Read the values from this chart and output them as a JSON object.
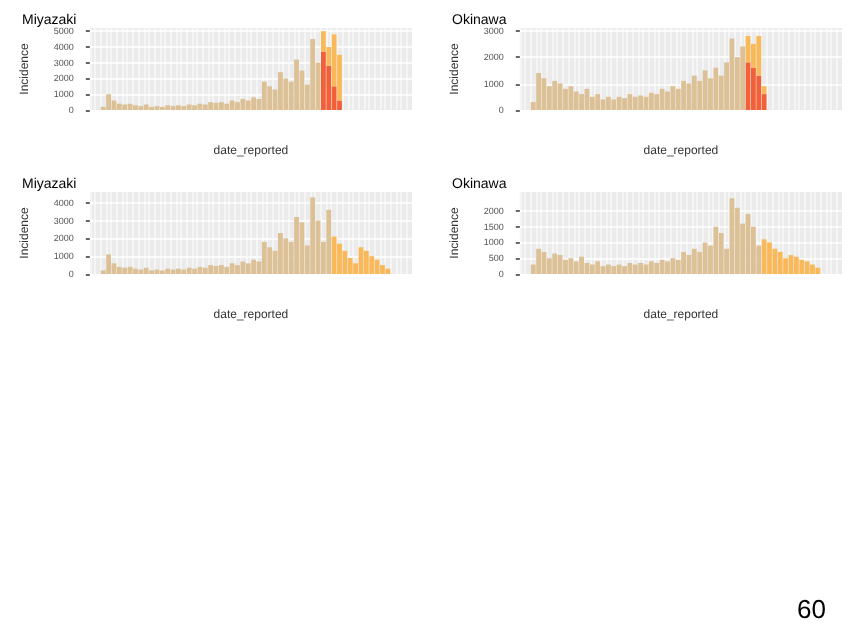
{
  "chart_data": [
    {
      "type": "bar",
      "title": "Miyazaki",
      "xlabel": "date_reported",
      "ylabel": "Incidence",
      "stacked": true,
      "grid": true,
      "ylim": [
        0,
        5200
      ],
      "yticks": [
        0,
        1000,
        2000,
        3000,
        4000,
        5000
      ],
      "categories": [
        null,
        null,
        null,
        null,
        null,
        null,
        null,
        null,
        null,
        null,
        null,
        null,
        null,
        null,
        null,
        null,
        null,
        null,
        null,
        null,
        null,
        null,
        null,
        null,
        null,
        null,
        null,
        null,
        null,
        null,
        null,
        null,
        null,
        null,
        null,
        null,
        null,
        null,
        null,
        null,
        null,
        null,
        null,
        null,
        null,
        null,
        null,
        null,
        null,
        null,
        null,
        null,
        null,
        null,
        null,
        null,
        null,
        null,
        null,
        null
      ],
      "series": [
        {
          "color": "#dcc197",
          "values": [
            null,
            null,
            200,
            1000,
            600,
            400,
            350,
            400,
            300,
            250,
            350,
            200,
            250,
            200,
            300,
            250,
            300,
            250,
            350,
            300,
            400,
            350,
            500,
            450,
            500,
            400,
            600,
            500,
            700,
            600,
            800,
            700,
            1800,
            1500,
            1300,
            2400,
            2000,
            1800,
            3200,
            2500,
            1600,
            4500,
            3000,
            null,
            null,
            null,
            null,
            null,
            null,
            null,
            null,
            null,
            null,
            null,
            null,
            null,
            null,
            null,
            null,
            null
          ]
        },
        {
          "color": "#f2603a",
          "values": [
            null,
            null,
            null,
            null,
            null,
            null,
            null,
            null,
            null,
            null,
            null,
            null,
            null,
            null,
            null,
            null,
            null,
            null,
            null,
            null,
            null,
            null,
            null,
            null,
            null,
            null,
            null,
            null,
            null,
            null,
            null,
            null,
            null,
            null,
            null,
            null,
            null,
            null,
            null,
            null,
            null,
            null,
            null,
            3700,
            2800,
            1500,
            600,
            null,
            null,
            null,
            null,
            null,
            null,
            null,
            null,
            null,
            null,
            null,
            null,
            null
          ]
        },
        {
          "color": "#f9b95a",
          "values": [
            null,
            null,
            null,
            null,
            null,
            null,
            null,
            null,
            null,
            null,
            null,
            null,
            null,
            null,
            null,
            null,
            null,
            null,
            null,
            null,
            null,
            null,
            null,
            null,
            null,
            null,
            null,
            null,
            null,
            null,
            null,
            null,
            null,
            null,
            null,
            null,
            null,
            null,
            null,
            null,
            null,
            null,
            null,
            1300,
            1200,
            3300,
            2900,
            null,
            null,
            null,
            null,
            null,
            null,
            null,
            null,
            null,
            null,
            null,
            null,
            null
          ]
        }
      ]
    },
    {
      "type": "bar",
      "title": "Okinawa",
      "xlabel": "date_reported",
      "ylabel": "Incidence",
      "stacked": true,
      "grid": true,
      "ylim": [
        0,
        3100
      ],
      "yticks": [
        0,
        1000,
        2000,
        3000
      ],
      "categories": [
        null,
        null,
        null,
        null,
        null,
        null,
        null,
        null,
        null,
        null,
        null,
        null,
        null,
        null,
        null,
        null,
        null,
        null,
        null,
        null,
        null,
        null,
        null,
        null,
        null,
        null,
        null,
        null,
        null,
        null,
        null,
        null,
        null,
        null,
        null,
        null,
        null,
        null,
        null,
        null,
        null,
        null,
        null,
        null,
        null,
        null,
        null,
        null,
        null,
        null,
        null,
        null,
        null,
        null,
        null,
        null,
        null,
        null,
        null,
        null
      ],
      "series": [
        {
          "color": "#dcc197",
          "values": [
            null,
            null,
            300,
            1400,
            1200,
            900,
            1100,
            1000,
            800,
            900,
            700,
            600,
            800,
            500,
            600,
            400,
            500,
            400,
            500,
            450,
            600,
            500,
            550,
            500,
            650,
            600,
            800,
            700,
            900,
            800,
            1100,
            1000,
            1300,
            1100,
            1500,
            1200,
            1600,
            1300,
            1800,
            2700,
            2000,
            2400,
            null,
            null,
            null,
            null,
            null,
            null,
            null,
            null,
            null,
            null,
            null,
            null,
            null,
            null,
            null,
            null,
            null,
            null
          ]
        },
        {
          "color": "#f2603a",
          "values": [
            null,
            null,
            null,
            null,
            null,
            null,
            null,
            null,
            null,
            null,
            null,
            null,
            null,
            null,
            null,
            null,
            null,
            null,
            null,
            null,
            null,
            null,
            null,
            null,
            null,
            null,
            null,
            null,
            null,
            null,
            null,
            null,
            null,
            null,
            null,
            null,
            null,
            null,
            null,
            null,
            null,
            null,
            1800,
            1600,
            1300,
            600,
            null,
            null,
            null,
            null,
            null,
            null,
            null,
            null,
            null,
            null,
            null,
            null,
            null,
            null
          ]
        },
        {
          "color": "#f9b95a",
          "values": [
            null,
            null,
            null,
            null,
            null,
            null,
            null,
            null,
            null,
            null,
            null,
            null,
            null,
            null,
            null,
            null,
            null,
            null,
            null,
            null,
            null,
            null,
            null,
            null,
            null,
            null,
            null,
            null,
            null,
            null,
            null,
            null,
            null,
            null,
            null,
            null,
            null,
            null,
            null,
            null,
            null,
            null,
            1000,
            900,
            1500,
            300,
            null,
            null,
            null,
            null,
            null,
            null,
            null,
            null,
            null,
            null,
            null,
            null,
            null,
            null
          ]
        }
      ]
    },
    {
      "type": "bar",
      "title": "Miyazaki",
      "xlabel": "date_reported",
      "ylabel": "Incidence",
      "stacked": true,
      "grid": true,
      "ylim": [
        0,
        4600
      ],
      "yticks": [
        0,
        1000,
        2000,
        3000,
        4000
      ],
      "categories": [
        null,
        null,
        null,
        null,
        null,
        null,
        null,
        null,
        null,
        null,
        null,
        null,
        null,
        null,
        null,
        null,
        null,
        null,
        null,
        null,
        null,
        null,
        null,
        null,
        null,
        null,
        null,
        null,
        null,
        null,
        null,
        null,
        null,
        null,
        null,
        null,
        null,
        null,
        null,
        null,
        null,
        null,
        null,
        null,
        null,
        null,
        null,
        null,
        null,
        null,
        null,
        null,
        null,
        null,
        null,
        null,
        null,
        null,
        null,
        null
      ],
      "series": [
        {
          "color": "#dcc197",
          "values": [
            null,
            null,
            200,
            1100,
            600,
            400,
            350,
            400,
            300,
            250,
            350,
            200,
            250,
            200,
            300,
            250,
            300,
            250,
            350,
            300,
            400,
            350,
            500,
            450,
            500,
            400,
            600,
            500,
            700,
            600,
            800,
            700,
            1800,
            1500,
            1300,
            2300,
            2000,
            1800,
            3200,
            2900,
            1600,
            4300,
            3000,
            1800,
            3600,
            null,
            null,
            null,
            null,
            null,
            null,
            null,
            null,
            null,
            null,
            null,
            null,
            null,
            null,
            null
          ]
        },
        {
          "color": "#f9b95a",
          "values": [
            null,
            null,
            null,
            null,
            null,
            null,
            null,
            null,
            null,
            null,
            null,
            null,
            null,
            null,
            null,
            null,
            null,
            null,
            null,
            null,
            null,
            null,
            null,
            null,
            null,
            null,
            null,
            null,
            null,
            null,
            null,
            null,
            null,
            null,
            null,
            null,
            null,
            null,
            null,
            null,
            null,
            null,
            null,
            null,
            null,
            2100,
            1700,
            1300,
            900,
            600,
            1500,
            1300,
            1000,
            800,
            500,
            300,
            null,
            null,
            null,
            null
          ]
        }
      ]
    },
    {
      "type": "bar",
      "title": "Okinawa",
      "xlabel": "date_reported",
      "ylabel": "Incidence",
      "stacked": true,
      "grid": true,
      "ylim": [
        0,
        2600
      ],
      "yticks": [
        0,
        500,
        1000,
        1500,
        2000
      ],
      "annotations": [
        "60"
      ],
      "categories": [
        null,
        null,
        null,
        null,
        null,
        null,
        null,
        null,
        null,
        null,
        null,
        null,
        null,
        null,
        null,
        null,
        null,
        null,
        null,
        null,
        null,
        null,
        null,
        null,
        null,
        null,
        null,
        null,
        null,
        null,
        null,
        null,
        null,
        null,
        null,
        null,
        null,
        null,
        null,
        null,
        null,
        null,
        null,
        null,
        null,
        null,
        null,
        null,
        null,
        null,
        null,
        null,
        null,
        null,
        null,
        null,
        null,
        null,
        null,
        null
      ],
      "series": [
        {
          "color": "#dcc197",
          "values": [
            null,
            null,
            300,
            800,
            700,
            500,
            650,
            600,
            450,
            500,
            400,
            550,
            350,
            300,
            400,
            250,
            300,
            250,
            300,
            250,
            350,
            300,
            350,
            300,
            400,
            350,
            450,
            400,
            500,
            450,
            700,
            600,
            800,
            700,
            1000,
            900,
            1500,
            1300,
            800,
            2400,
            2100,
            1600,
            1900,
            1500,
            900,
            null,
            null,
            null,
            null,
            null,
            null,
            null,
            null,
            null,
            null,
            null,
            null,
            null,
            null,
            null
          ]
        },
        {
          "color": "#f9b95a",
          "values": [
            null,
            null,
            null,
            null,
            null,
            null,
            null,
            null,
            null,
            null,
            null,
            null,
            null,
            null,
            null,
            null,
            null,
            null,
            null,
            null,
            null,
            null,
            null,
            null,
            null,
            null,
            null,
            null,
            null,
            null,
            null,
            null,
            null,
            null,
            null,
            null,
            null,
            null,
            null,
            null,
            null,
            null,
            null,
            null,
            null,
            1100,
            1000,
            800,
            700,
            500,
            600,
            550,
            450,
            400,
            300,
            200,
            null,
            null,
            null,
            null
          ]
        }
      ]
    }
  ]
}
